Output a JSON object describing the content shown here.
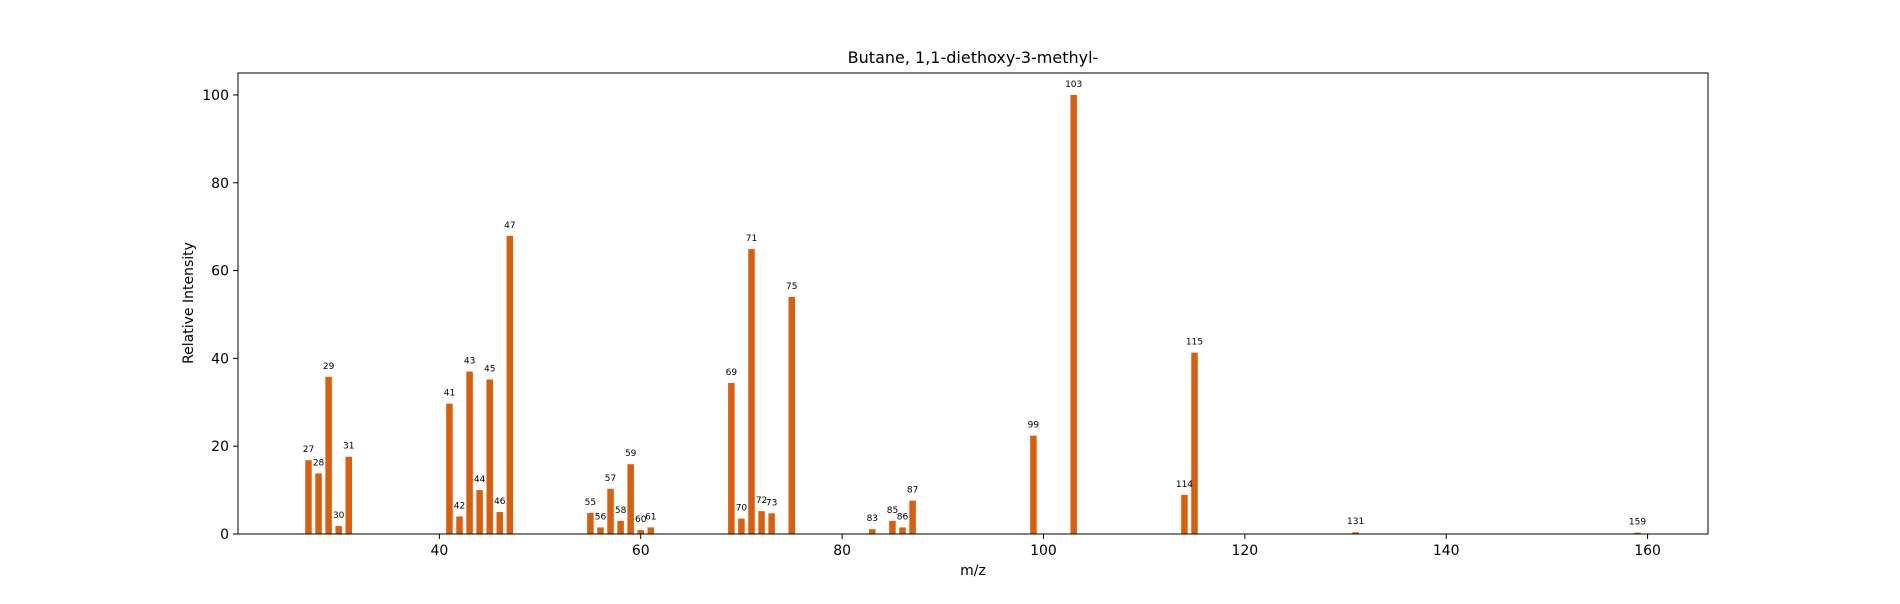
{
  "colors": {
    "bar": "#d95f0e",
    "axis": "#000000",
    "background": "#ffffff"
  },
  "chart_data": {
    "type": "bar",
    "title": "Butane, 1,1-diethoxy-3-methyl-",
    "xlabel": "m/z",
    "ylabel": "Relative Intensity",
    "xlim": [
      20,
      166
    ],
    "ylim": [
      0,
      105
    ],
    "xticks": [
      40,
      60,
      80,
      100,
      120,
      140,
      160
    ],
    "yticks": [
      0,
      20,
      40,
      60,
      80,
      100
    ],
    "grid": false,
    "legend": "none",
    "x": [
      27,
      28,
      29,
      30,
      31,
      41,
      42,
      43,
      44,
      45,
      46,
      47,
      55,
      56,
      57,
      58,
      59,
      60,
      61,
      69,
      70,
      71,
      72,
      73,
      75,
      83,
      85,
      86,
      87,
      99,
      103,
      114,
      115,
      131,
      159
    ],
    "values": [
      16.8,
      13.8,
      35.8,
      1.8,
      17.6,
      29.7,
      4.0,
      37.0,
      10.0,
      35.2,
      5.0,
      67.9,
      4.8,
      1.5,
      10.3,
      3.0,
      15.9,
      0.9,
      1.5,
      34.4,
      3.5,
      64.9,
      5.2,
      4.7,
      54.0,
      1.1,
      3.0,
      1.5,
      7.6,
      22.4,
      100.0,
      8.9,
      41.3,
      0.4,
      0.3
    ],
    "labels": [
      "27",
      "28",
      "29",
      "30",
      "31",
      "41",
      "42",
      "43",
      "44",
      "45",
      "46",
      "47",
      "55",
      "56",
      "57",
      "58",
      "59",
      "60",
      "61",
      "69",
      "70",
      "71",
      "72",
      "73",
      "75",
      "83",
      "85",
      "86",
      "87",
      "99",
      "103",
      "114",
      "115",
      "131",
      "159"
    ]
  }
}
